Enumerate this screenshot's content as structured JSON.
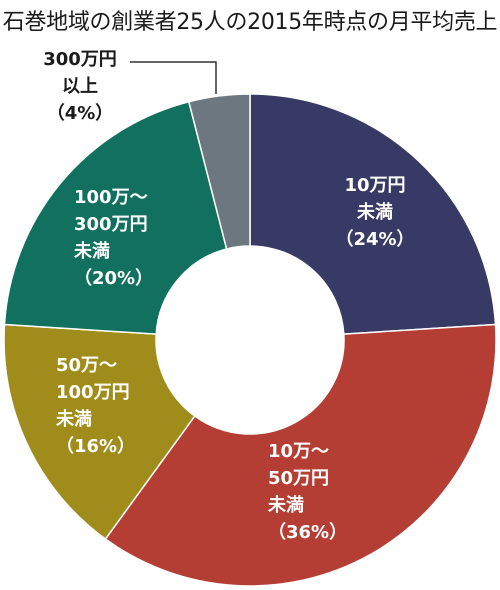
{
  "chart_data": {
    "type": "pie",
    "title": "石巻地域の創業者25人の2015年時点の月平均売上",
    "donut": true,
    "slices": [
      {
        "key": "a",
        "label_lines": [
          "10万円",
          "未満",
          "（24%）"
        ],
        "value": 24,
        "color": "#383a66"
      },
      {
        "key": "b",
        "label_lines": [
          "10万～",
          "50万円",
          "未満",
          "（36%）"
        ],
        "value": 36,
        "color": "#b53e34"
      },
      {
        "key": "c",
        "label_lines": [
          "50万～",
          "100万円",
          "未満",
          "（16%）"
        ],
        "value": 16,
        "color": "#a08c1a"
      },
      {
        "key": "d",
        "label_lines": [
          "100万～",
          "300万円",
          "未満",
          "（20%）"
        ],
        "value": 20,
        "color": "#12705e"
      },
      {
        "key": "e",
        "label_lines": [
          "300万円",
          "以上",
          "（4%）"
        ],
        "value": 4,
        "color": "#6d7780"
      }
    ]
  }
}
